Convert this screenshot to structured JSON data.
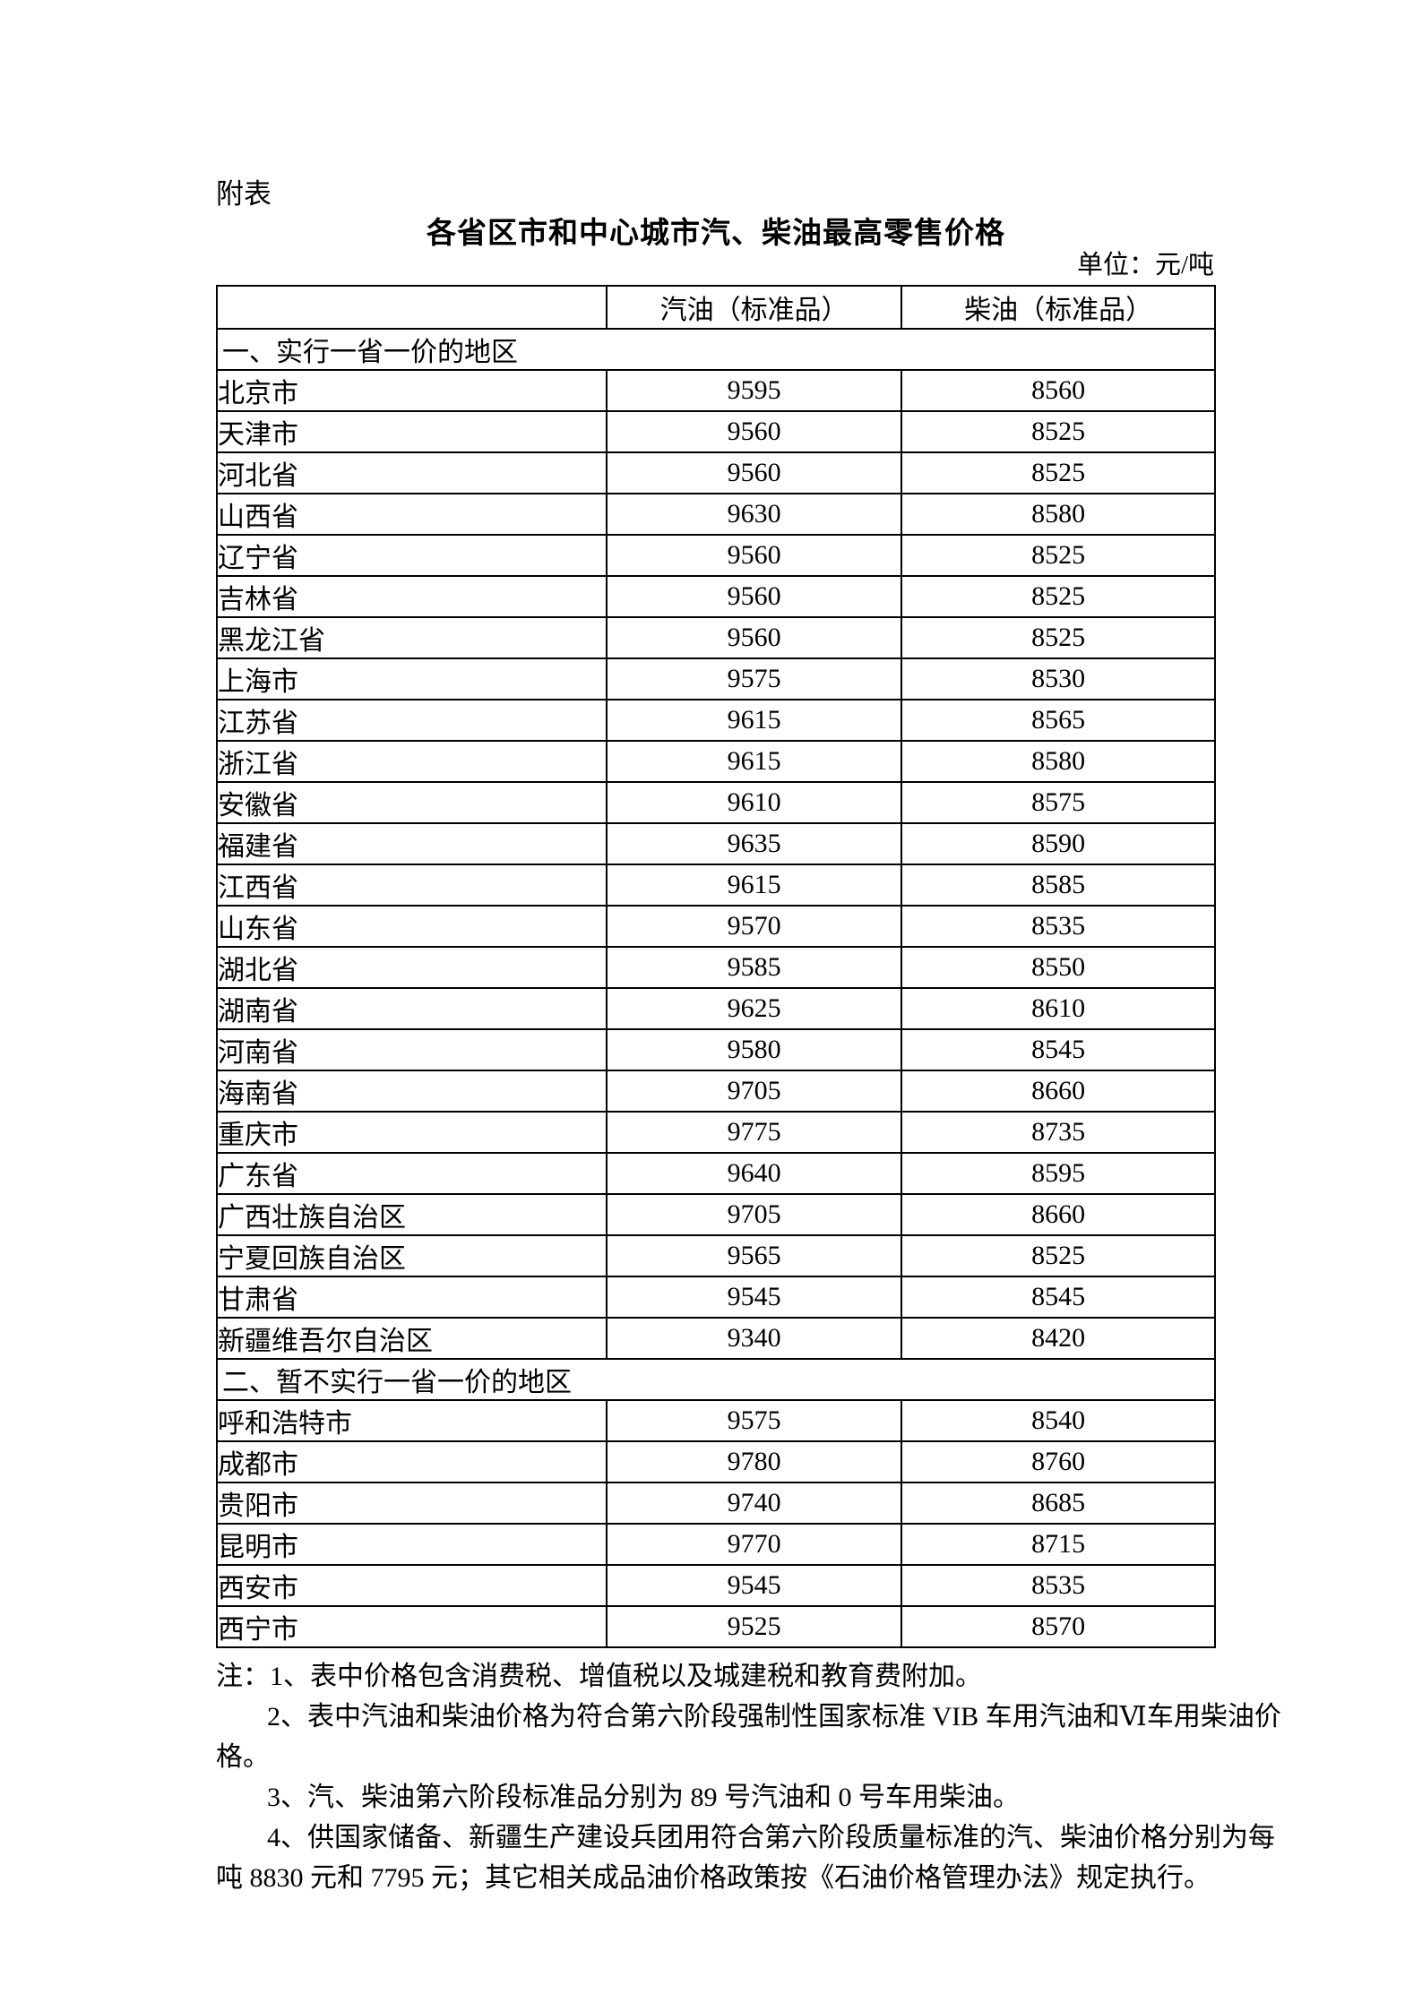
{
  "page": {
    "appendix_label": "附表",
    "title": "各省区市和中心城市汽、柴油最高零售价格",
    "unit_label": "单位：元/吨"
  },
  "table": {
    "columns": [
      "",
      "汽油（标准品）",
      "柴油（标准品）"
    ],
    "sections": [
      {
        "heading": "一、实行一省一价的地区",
        "rows": [
          {
            "region": "北京市",
            "gasoline": "9595",
            "diesel": "8560"
          },
          {
            "region": "天津市",
            "gasoline": "9560",
            "diesel": "8525"
          },
          {
            "region": "河北省",
            "gasoline": "9560",
            "diesel": "8525"
          },
          {
            "region": "山西省",
            "gasoline": "9630",
            "diesel": "8580"
          },
          {
            "region": "辽宁省",
            "gasoline": "9560",
            "diesel": "8525"
          },
          {
            "region": "吉林省",
            "gasoline": "9560",
            "diesel": "8525"
          },
          {
            "region": "黑龙江省",
            "gasoline": "9560",
            "diesel": "8525"
          },
          {
            "region": "上海市",
            "gasoline": "9575",
            "diesel": "8530"
          },
          {
            "region": "江苏省",
            "gasoline": "9615",
            "diesel": "8565"
          },
          {
            "region": "浙江省",
            "gasoline": "9615",
            "diesel": "8580"
          },
          {
            "region": "安徽省",
            "gasoline": "9610",
            "diesel": "8575"
          },
          {
            "region": "福建省",
            "gasoline": "9635",
            "diesel": "8590"
          },
          {
            "region": "江西省",
            "gasoline": "9615",
            "diesel": "8585"
          },
          {
            "region": "山东省",
            "gasoline": "9570",
            "diesel": "8535"
          },
          {
            "region": "湖北省",
            "gasoline": "9585",
            "diesel": "8550"
          },
          {
            "region": "湖南省",
            "gasoline": "9625",
            "diesel": "8610"
          },
          {
            "region": "河南省",
            "gasoline": "9580",
            "diesel": "8545"
          },
          {
            "region": "海南省",
            "gasoline": "9705",
            "diesel": "8660"
          },
          {
            "region": "重庆市",
            "gasoline": "9775",
            "diesel": "8735"
          },
          {
            "region": "广东省",
            "gasoline": "9640",
            "diesel": "8595"
          },
          {
            "region": "广西壮族自治区",
            "gasoline": "9705",
            "diesel": "8660"
          },
          {
            "region": "宁夏回族自治区",
            "gasoline": "9565",
            "diesel": "8525"
          },
          {
            "region": "甘肃省",
            "gasoline": "9545",
            "diesel": "8545"
          },
          {
            "region": "新疆维吾尔自治区",
            "gasoline": "9340",
            "diesel": "8420"
          }
        ]
      },
      {
        "heading": "二、暂不实行一省一价的地区",
        "rows": [
          {
            "region": "呼和浩特市",
            "gasoline": "9575",
            "diesel": "8540"
          },
          {
            "region": "成都市",
            "gasoline": "9780",
            "diesel": "8760"
          },
          {
            "region": "贵阳市",
            "gasoline": "9740",
            "diesel": "8685"
          },
          {
            "region": "昆明市",
            "gasoline": "9770",
            "diesel": "8715"
          },
          {
            "region": "西安市",
            "gasoline": "9545",
            "diesel": "8535"
          },
          {
            "region": "西宁市",
            "gasoline": "9525",
            "diesel": "8570"
          }
        ]
      }
    ]
  },
  "notes": {
    "lines": [
      {
        "text": "注：1、表中价格包含消费税、增值税以及城建税和教育费附加。",
        "indent": false
      },
      {
        "text": "2、表中汽油和柴油价格为符合第六阶段强制性国家标准 VIB 车用汽油和Ⅵ车用柴油价",
        "indent": true
      },
      {
        "text": "格。",
        "indent": false
      },
      {
        "text": "3、汽、柴油第六阶段标准品分别为 89 号汽油和 0 号车用柴油。",
        "indent": true
      },
      {
        "text": "4、供国家储备、新疆生产建设兵团用符合第六阶段质量标准的汽、柴油价格分别为每",
        "indent": true
      },
      {
        "text": "吨 8830 元和 7795 元；其它相关成品油价格政策按《石油价格管理办法》规定执行。",
        "indent": false
      }
    ]
  }
}
